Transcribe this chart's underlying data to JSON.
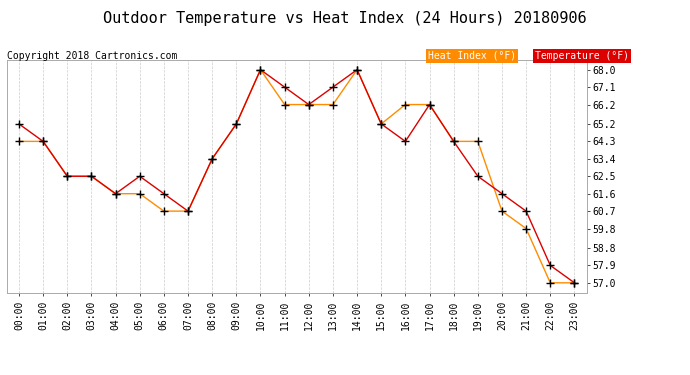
{
  "title": "Outdoor Temperature vs Heat Index (24 Hours) 20180906",
  "copyright": "Copyright 2018 Cartronics.com",
  "background_color": "#ffffff",
  "plot_bg_color": "#ffffff",
  "grid_color": "#cccccc",
  "hours": [
    "00:00",
    "01:00",
    "02:00",
    "03:00",
    "04:00",
    "05:00",
    "06:00",
    "07:00",
    "08:00",
    "09:00",
    "10:00",
    "11:00",
    "12:00",
    "13:00",
    "14:00",
    "15:00",
    "16:00",
    "17:00",
    "18:00",
    "19:00",
    "20:00",
    "21:00",
    "22:00",
    "23:00"
  ],
  "temperature": [
    65.2,
    64.3,
    62.5,
    62.5,
    61.6,
    62.5,
    61.6,
    60.7,
    63.4,
    65.2,
    68.0,
    67.1,
    66.2,
    67.1,
    68.0,
    65.2,
    64.3,
    66.2,
    64.3,
    62.5,
    61.6,
    60.7,
    57.9,
    57.0
  ],
  "heat_index": [
    64.3,
    64.3,
    62.5,
    62.5,
    61.6,
    61.6,
    60.7,
    60.7,
    63.4,
    65.2,
    68.0,
    66.2,
    66.2,
    66.2,
    68.0,
    65.2,
    66.2,
    66.2,
    64.3,
    64.3,
    60.7,
    59.8,
    57.0,
    57.0
  ],
  "temp_color": "#dd0000",
  "heat_color": "#ff8c00",
  "ylim_min": 56.5,
  "ylim_max": 68.5,
  "yticks": [
    57.0,
    57.9,
    58.8,
    59.8,
    60.7,
    61.6,
    62.5,
    63.4,
    64.3,
    65.2,
    66.2,
    67.1,
    68.0
  ],
  "legend_heat_bg": "#ff8c00",
  "legend_temp_bg": "#dd0000",
  "marker": "+",
  "marker_color": "#000000",
  "marker_size": 6,
  "title_fontsize": 11,
  "tick_fontsize": 7,
  "copyright_fontsize": 7
}
